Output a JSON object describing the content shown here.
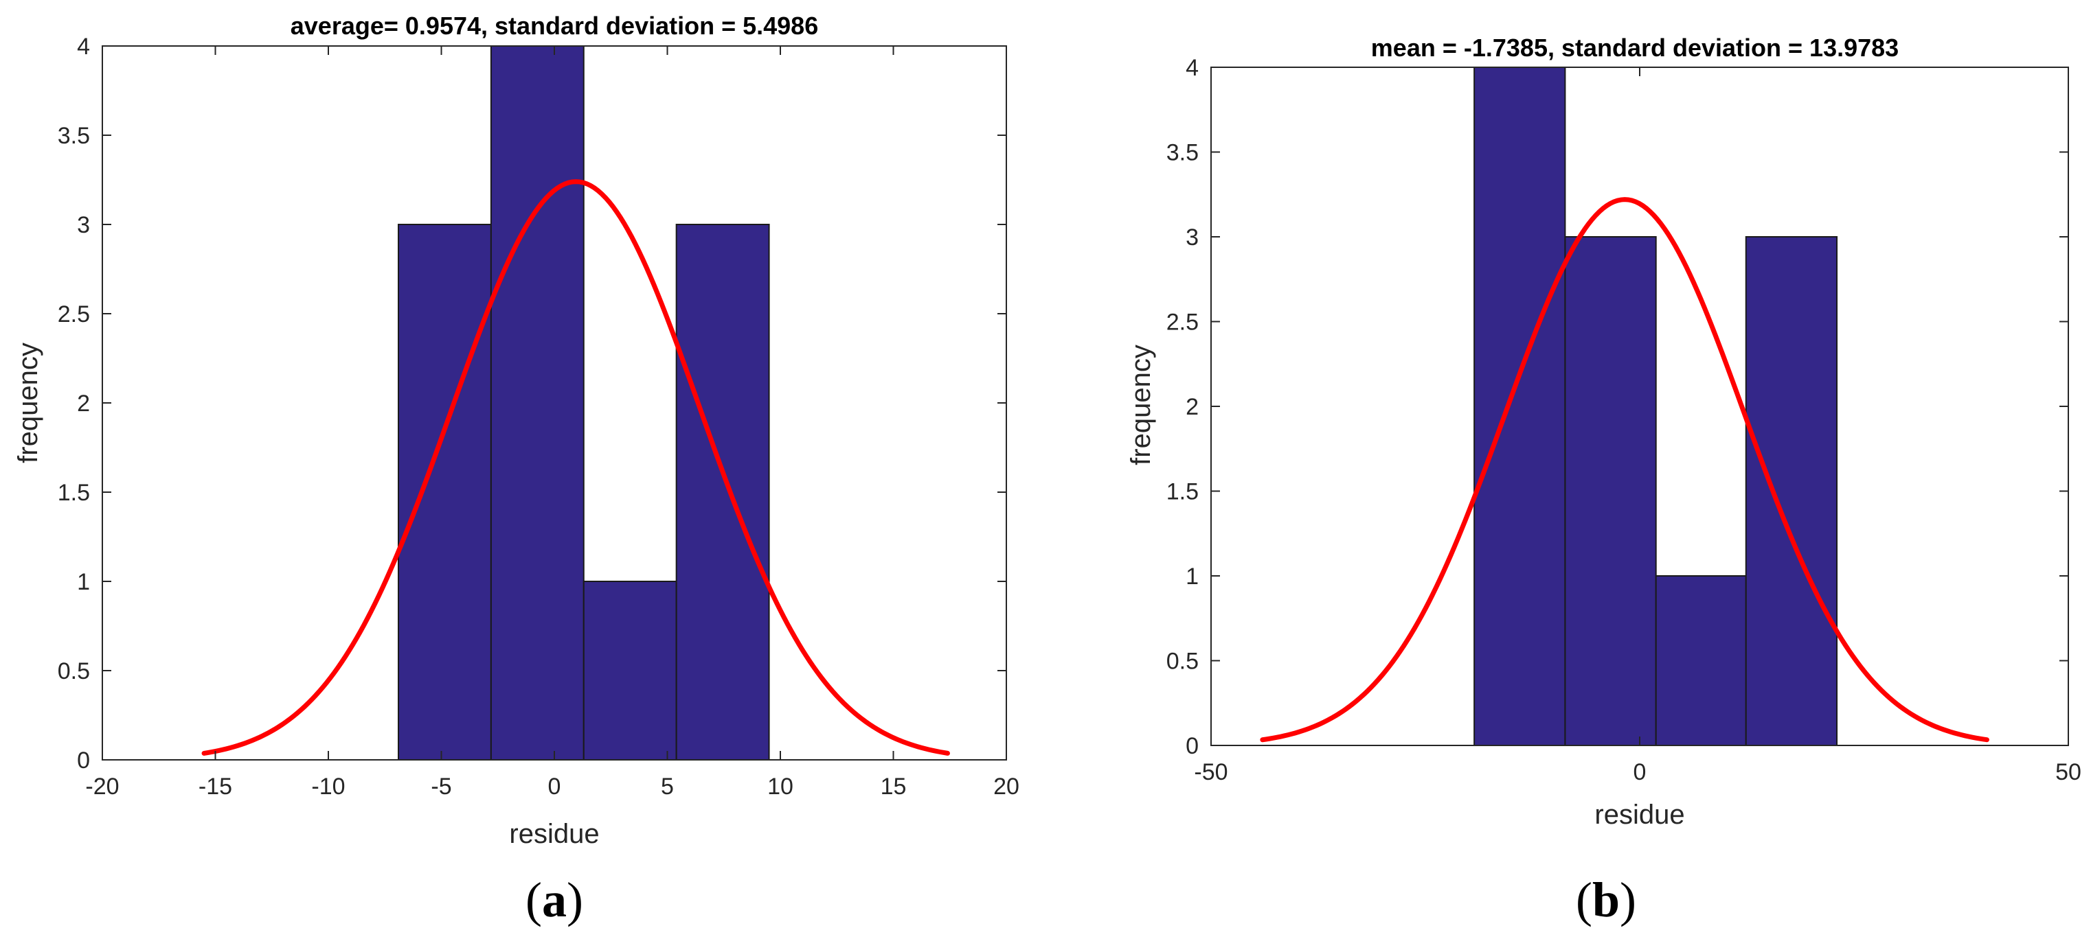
{
  "colors": {
    "bar_fill": "#342789",
    "bar_edge": "#1a1a1a",
    "curve": "#ff0000",
    "axis": "#262626"
  },
  "chart_data": [
    {
      "type": "bar",
      "panel_label_open": "(",
      "panel_label_letter": "a",
      "panel_label_close": ")",
      "title": "average= 0.9574, standard deviation = 5.4986",
      "xlabel": "residue",
      "ylabel": "frequency",
      "xlim": [
        -20,
        20
      ],
      "ylim": [
        0,
        4
      ],
      "xticks": [
        -20,
        -15,
        -10,
        -5,
        0,
        5,
        10,
        15,
        20
      ],
      "xtick_labels": [
        "-20",
        "-15",
        "-10",
        "-5",
        "0",
        "5",
        "10",
        "15",
        "20"
      ],
      "yticks": [
        0,
        0.5,
        1,
        1.5,
        2,
        2.5,
        3,
        3.5,
        4
      ],
      "ytick_labels": [
        "0",
        "0.5",
        "1",
        "1.5",
        "2",
        "2.5",
        "3",
        "3.5",
        "4"
      ],
      "bin_edges": [
        -6.9,
        -2.8,
        1.3,
        5.4,
        9.5
      ],
      "counts": [
        3,
        4,
        1,
        3
      ],
      "fit": {
        "mean": 0.9574,
        "std": 5.4986,
        "xrange": [
          -15.5,
          17.4
        ],
        "peak": 3.24
      }
    },
    {
      "type": "bar",
      "panel_label_open": "(",
      "panel_label_letter": "b",
      "panel_label_close": ")",
      "title": "mean = -1.7385, standard deviation = 13.9783",
      "xlabel": "residue",
      "ylabel": "frequency",
      "xlim": [
        -50,
        50
      ],
      "ylim": [
        0,
        4
      ],
      "xticks": [
        -50,
        0,
        50
      ],
      "xtick_labels": [
        "-50",
        "0",
        "50"
      ],
      "yticks": [
        0,
        0.5,
        1,
        1.5,
        2,
        2.5,
        3,
        3.5,
        4
      ],
      "ytick_labels": [
        "0",
        "0.5",
        "1",
        "1.5",
        "2",
        "2.5",
        "3",
        "3.5",
        "4"
      ],
      "bin_edges": [
        -19.3,
        -8.7,
        1.9,
        12.4,
        23.0
      ],
      "counts": [
        4,
        3,
        1,
        3
      ],
      "fit": {
        "mean": -1.7385,
        "std": 13.9783,
        "xrange": [
          -44.0,
          40.5
        ],
        "peak": 3.22
      }
    }
  ]
}
